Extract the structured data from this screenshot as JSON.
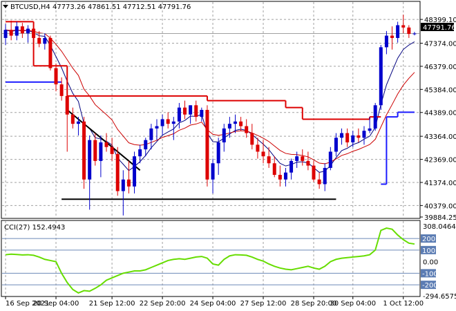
{
  "chart_data": [
    {
      "type": "candlestick",
      "title": "BTCUSD,H4  47773.26 47861.51 47712.51 47791.76",
      "symbol": "BTCUSD,H4",
      "ohlc_header": [
        "47773.26",
        "47861.51",
        "47712.51",
        "47791.76"
      ],
      "last_price_label": "47791.76",
      "ylim": [
        39884.25,
        48700
      ],
      "y_tick_labels": [
        "48399.10",
        "47374.00",
        "46379.00",
        "45384.00",
        "44389.00",
        "43364.00",
        "42369.00",
        "41374.00",
        "40379.00",
        "39884.25"
      ],
      "x_tick_labels": [
        "16 Sep 2021",
        "20 Sep 04:00",
        "21 Sep 12:00",
        "22 Sep 20:00",
        "24 Sep 04:00",
        "27 Sep 12:00",
        "28 Sep 20:00",
        "30 Sep 04:00",
        "1 Oct 12:00"
      ],
      "candles": [
        {
          "o": 47600,
          "h": 48200,
          "l": 47300,
          "c": 47950
        },
        {
          "o": 47950,
          "h": 48350,
          "l": 47500,
          "c": 47700
        },
        {
          "o": 47700,
          "h": 48300,
          "l": 47500,
          "c": 48100
        },
        {
          "o": 48100,
          "h": 48250,
          "l": 47600,
          "c": 47800
        },
        {
          "o": 47800,
          "h": 48150,
          "l": 47400,
          "c": 48000
        },
        {
          "o": 48000,
          "h": 48100,
          "l": 47300,
          "c": 47600
        },
        {
          "o": 47600,
          "h": 47900,
          "l": 47200,
          "c": 47350
        },
        {
          "o": 47350,
          "h": 47800,
          "l": 47100,
          "c": 47600
        },
        {
          "o": 47600,
          "h": 47700,
          "l": 46200,
          "c": 46300
        },
        {
          "o": 46300,
          "h": 46500,
          "l": 45300,
          "c": 45600
        },
        {
          "o": 45600,
          "h": 45900,
          "l": 44900,
          "c": 45100
        },
        {
          "o": 45100,
          "h": 45300,
          "l": 42700,
          "c": 44300
        },
        {
          "o": 44300,
          "h": 44600,
          "l": 43700,
          "c": 43900
        },
        {
          "o": 43900,
          "h": 44200,
          "l": 43400,
          "c": 44000
        },
        {
          "o": 44000,
          "h": 44200,
          "l": 41100,
          "c": 41500
        },
        {
          "o": 41500,
          "h": 43400,
          "l": 40200,
          "c": 43200
        },
        {
          "o": 43200,
          "h": 43500,
          "l": 42100,
          "c": 42300
        },
        {
          "o": 42300,
          "h": 43400,
          "l": 41600,
          "c": 43100
        },
        {
          "o": 43100,
          "h": 43500,
          "l": 42700,
          "c": 42900
        },
        {
          "o": 42900,
          "h": 43300,
          "l": 42300,
          "c": 42600
        },
        {
          "o": 42600,
          "h": 42900,
          "l": 40800,
          "c": 41000
        },
        {
          "o": 41000,
          "h": 41900,
          "l": 39950,
          "c": 41500
        },
        {
          "o": 41500,
          "h": 42300,
          "l": 40900,
          "c": 41200
        },
        {
          "o": 41200,
          "h": 42700,
          "l": 40900,
          "c": 42500
        },
        {
          "o": 42500,
          "h": 43000,
          "l": 42200,
          "c": 42800
        },
        {
          "o": 42800,
          "h": 43300,
          "l": 42500,
          "c": 43200
        },
        {
          "o": 43200,
          "h": 43900,
          "l": 42800,
          "c": 43700
        },
        {
          "o": 43700,
          "h": 44100,
          "l": 43200,
          "c": 43800
        },
        {
          "o": 43800,
          "h": 44300,
          "l": 43400,
          "c": 44100
        },
        {
          "o": 44100,
          "h": 44400,
          "l": 43700,
          "c": 43900
        },
        {
          "o": 43900,
          "h": 44200,
          "l": 43200,
          "c": 44000
        },
        {
          "o": 44000,
          "h": 44800,
          "l": 43700,
          "c": 44600
        },
        {
          "o": 44600,
          "h": 44900,
          "l": 44100,
          "c": 44300
        },
        {
          "o": 44300,
          "h": 44700,
          "l": 43900,
          "c": 44700
        },
        {
          "o": 44700,
          "h": 44900,
          "l": 44000,
          "c": 44200
        },
        {
          "o": 44200,
          "h": 44600,
          "l": 44000,
          "c": 44500
        },
        {
          "o": 44500,
          "h": 44700,
          "l": 41200,
          "c": 41500
        },
        {
          "o": 41500,
          "h": 42400,
          "l": 40900,
          "c": 42200
        },
        {
          "o": 42200,
          "h": 43300,
          "l": 41700,
          "c": 43100
        },
        {
          "o": 43100,
          "h": 43900,
          "l": 42700,
          "c": 43700
        },
        {
          "o": 43700,
          "h": 44200,
          "l": 43300,
          "c": 43900
        },
        {
          "o": 43900,
          "h": 44300,
          "l": 43500,
          "c": 44000
        },
        {
          "o": 44000,
          "h": 44200,
          "l": 43600,
          "c": 43800
        },
        {
          "o": 43800,
          "h": 44100,
          "l": 43300,
          "c": 43500
        },
        {
          "o": 43500,
          "h": 43900,
          "l": 42800,
          "c": 43000
        },
        {
          "o": 43000,
          "h": 43300,
          "l": 42400,
          "c": 42700
        },
        {
          "o": 42700,
          "h": 43200,
          "l": 42200,
          "c": 42500
        },
        {
          "o": 42500,
          "h": 42900,
          "l": 42000,
          "c": 42200
        },
        {
          "o": 42200,
          "h": 42500,
          "l": 41600,
          "c": 41700
        },
        {
          "o": 41700,
          "h": 42100,
          "l": 41200,
          "c": 41500
        },
        {
          "o": 41500,
          "h": 42000,
          "l": 41200,
          "c": 41800
        },
        {
          "o": 41800,
          "h": 42400,
          "l": 41500,
          "c": 42300
        },
        {
          "o": 42300,
          "h": 42700,
          "l": 42000,
          "c": 42500
        },
        {
          "o": 42500,
          "h": 42800,
          "l": 42100,
          "c": 42300
        },
        {
          "o": 42300,
          "h": 42700,
          "l": 41900,
          "c": 42100
        },
        {
          "o": 42100,
          "h": 42300,
          "l": 41400,
          "c": 41500
        },
        {
          "o": 41500,
          "h": 41800,
          "l": 41100,
          "c": 41300
        },
        {
          "o": 41300,
          "h": 42200,
          "l": 41000,
          "c": 42000
        },
        {
          "o": 42000,
          "h": 42900,
          "l": 41900,
          "c": 42700
        },
        {
          "o": 42700,
          "h": 43500,
          "l": 42500,
          "c": 43300
        },
        {
          "o": 43300,
          "h": 43700,
          "l": 43000,
          "c": 43500
        },
        {
          "o": 43500,
          "h": 43700,
          "l": 42900,
          "c": 43100
        },
        {
          "o": 43100,
          "h": 43600,
          "l": 42900,
          "c": 43400
        },
        {
          "o": 43400,
          "h": 43700,
          "l": 43100,
          "c": 43300
        },
        {
          "o": 43300,
          "h": 43800,
          "l": 43000,
          "c": 43600
        },
        {
          "o": 43600,
          "h": 44200,
          "l": 43500,
          "c": 43700
        },
        {
          "o": 43700,
          "h": 44800,
          "l": 43600,
          "c": 44700
        },
        {
          "o": 44700,
          "h": 47300,
          "l": 44500,
          "c": 47200
        },
        {
          "o": 47200,
          "h": 47900,
          "l": 46900,
          "c": 47700
        },
        {
          "o": 47700,
          "h": 48100,
          "l": 47100,
          "c": 47600
        },
        {
          "o": 47600,
          "h": 48300,
          "l": 47400,
          "c": 48150
        },
        {
          "o": 48150,
          "h": 48600,
          "l": 47800,
          "c": 48050
        },
        {
          "o": 48050,
          "h": 48150,
          "l": 47600,
          "c": 47773.26
        },
        {
          "o": 47773.26,
          "h": 47861.51,
          "l": 47712.51,
          "c": 47791.76
        }
      ],
      "overlays": {
        "step_line_red": [
          {
            "from": 0,
            "to": 5,
            "value": 48300
          },
          {
            "from": 5,
            "to": 11,
            "value": 46400
          },
          {
            "from": 11,
            "to": 36,
            "value": 45100
          },
          {
            "from": 36,
            "to": 50,
            "value": 44900
          },
          {
            "from": 50,
            "to": 53,
            "value": 44600
          },
          {
            "from": 53,
            "to": 65,
            "value": 44100
          },
          {
            "from": 65,
            "to": 67,
            "value": 44200
          }
        ],
        "step_line_blue": [
          {
            "from": 0,
            "to": 10,
            "value": 45700
          },
          {
            "from": 67,
            "to": 68,
            "value": 41300
          },
          {
            "from": 68,
            "to": 70,
            "value": 44200
          },
          {
            "from": 70,
            "to": 73,
            "value": 44400
          }
        ],
        "trendline_black": [
          {
            "i": 11,
            "v": 44500
          },
          {
            "i": 24,
            "v": 41900
          }
        ],
        "support_line_black": [
          {
            "i": 10,
            "v": 40650
          },
          {
            "i": 59,
            "v": 40650
          }
        ]
      },
      "colors": {
        "bull": "#0000cc",
        "bear": "#dd0000",
        "ma_fast": "#00007f",
        "ma_slow": "#cc0000",
        "grid": "#a0a0a0"
      }
    },
    {
      "type": "line",
      "title": "CCI(27) 152.4943",
      "indicator": "CCI(27)",
      "value_label": "152.4943",
      "ylim": [
        -294.6575,
        308.0464
      ],
      "y_tick_labels": [
        "308.0464",
        "200",
        "100",
        "0.00",
        "-100",
        "-200",
        "-294.6575"
      ],
      "levels": [
        200,
        100,
        -100,
        -200
      ],
      "series": [
        {
          "values": [
            60,
            65,
            62,
            58,
            60,
            55,
            40,
            20,
            10,
            0,
            -100,
            -180,
            -240,
            -270,
            -250,
            -255,
            -230,
            -200,
            -160,
            -140,
            -120,
            -100,
            -90,
            -80,
            -80,
            -70,
            -50,
            -30,
            -10,
            10,
            20,
            25,
            20,
            30,
            40,
            45,
            30,
            -20,
            -30,
            20,
            50,
            60,
            58,
            55,
            40,
            20,
            5,
            -20,
            -40,
            -55,
            -65,
            -70,
            -60,
            -50,
            -40,
            -55,
            -65,
            -40,
            0,
            20,
            30,
            35,
            40,
            45,
            50,
            60,
            100,
            270,
            290,
            280,
            230,
            190,
            160,
            152.4943
          ]
        }
      ],
      "colors": {
        "line": "#66dd00",
        "level": "#6b89b8",
        "label_bg": "#5b7cb3"
      }
    }
  ]
}
